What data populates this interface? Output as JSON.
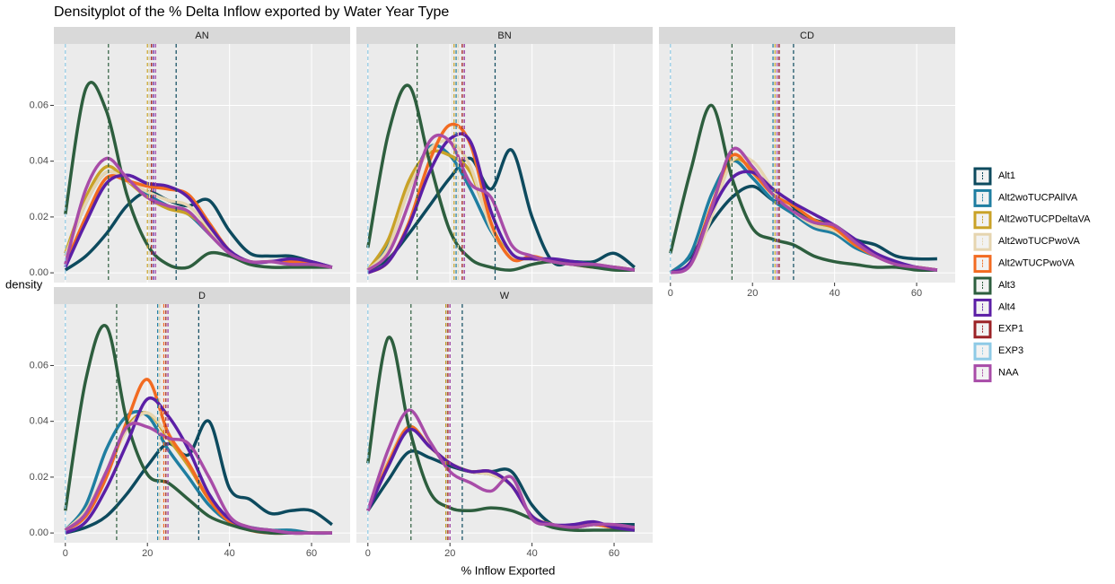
{
  "chart_data": {
    "type": "line",
    "title": "Densityplot of the % Delta Inflow exported by Water Year Type",
    "x_label": "% Inflow Exported",
    "y_label": "density",
    "x": [
      0,
      5,
      10,
      15,
      20,
      25,
      30,
      35,
      40,
      45,
      50,
      55,
      60,
      65
    ],
    "xlim": [
      -2.8,
      69.4
    ],
    "xticks": [
      0,
      20,
      40,
      60
    ],
    "ylim": [
      -0.0035,
      0.082
    ],
    "yticks": [
      {
        "value": 0,
        "label": "0.00"
      },
      0.02,
      0.04,
      0.06
    ],
    "grid": true,
    "legend": "right",
    "series": [
      {
        "name": "Alt1",
        "color": "#0d4a5e"
      },
      {
        "name": "Alt2woTUCPAllVA",
        "color": "#1f7ea1"
      },
      {
        "name": "Alt2woTUCPDeltaVA",
        "color": "#c9a227"
      },
      {
        "name": "Alt2woTUCPwoVA",
        "color": "#e6d5b0"
      },
      {
        "name": "Alt2wTUCPwoVA",
        "color": "#f26b21"
      },
      {
        "name": "Alt3",
        "color": "#2d5e3e"
      },
      {
        "name": "Alt4",
        "color": "#5b1fa6"
      },
      {
        "name": "EXP1",
        "color": "#9b2226"
      },
      {
        "name": "EXP3",
        "color": "#8ecae6"
      },
      {
        "name": "NAA",
        "color": "#a84ca8"
      }
    ],
    "facets": [
      {
        "title": "AN",
        "densities": [
          [
            0.001,
            0.006,
            0.014,
            0.024,
            0.029,
            0.026,
            0.024,
            0.026,
            0.015,
            0.007,
            0.006,
            0.006,
            0.004,
            0.002
          ],
          [
            0.006,
            0.025,
            0.036,
            0.033,
            0.028,
            0.024,
            0.021,
            0.014,
            0.007,
            0.004,
            0.004,
            0.004,
            0.003,
            0.002
          ],
          [
            0.007,
            0.027,
            0.038,
            0.033,
            0.027,
            0.023,
            0.021,
            0.015,
            0.007,
            0.004,
            0.004,
            0.004,
            0.003,
            0.002
          ],
          [
            0.006,
            0.025,
            0.036,
            0.033,
            0.029,
            0.026,
            0.024,
            0.016,
            0.007,
            0.004,
            0.004,
            0.004,
            0.003,
            0.002
          ],
          [
            0.003,
            0.02,
            0.034,
            0.033,
            0.031,
            0.03,
            0.028,
            0.018,
            0.008,
            0.004,
            0.004,
            0.004,
            0.003,
            0.002
          ],
          [
            0.021,
            0.066,
            0.058,
            0.028,
            0.01,
            0.003,
            0.002,
            0.007,
            0.006,
            0.003,
            0.002,
            0.002,
            0.002,
            0.002
          ],
          [
            0.002,
            0.018,
            0.032,
            0.035,
            0.032,
            0.031,
            0.027,
            0.017,
            0.008,
            0.004,
            0.004,
            0.005,
            0.004,
            0.002
          ],
          null,
          null,
          [
            0.003,
            0.03,
            0.041,
            0.034,
            0.027,
            0.024,
            0.022,
            0.014,
            0.007,
            0.004,
            0.004,
            0.003,
            0.003,
            0.002
          ]
        ],
        "means": [
          27,
          20.5,
          20,
          20.5,
          21,
          10.5,
          21.5,
          21,
          0,
          22
        ]
      },
      {
        "title": "BN",
        "densities": [
          [
            0.001,
            0.005,
            0.014,
            0.024,
            0.034,
            0.041,
            0.03,
            0.044,
            0.02,
            0.004,
            0.004,
            0.004,
            0.007,
            0.002
          ],
          [
            0.001,
            0.01,
            0.03,
            0.045,
            0.042,
            0.03,
            0.015,
            0.006,
            0.005,
            0.004,
            0.004,
            0.003,
            0.002,
            0.001
          ],
          [
            0.001,
            0.012,
            0.033,
            0.043,
            0.042,
            0.036,
            0.017,
            0.006,
            0.005,
            0.004,
            0.003,
            0.003,
            0.002,
            0.001
          ],
          [
            0.001,
            0.009,
            0.03,
            0.044,
            0.047,
            0.038,
            0.016,
            0.006,
            0.005,
            0.004,
            0.003,
            0.003,
            0.002,
            0.001
          ],
          [
            0.0,
            0.004,
            0.018,
            0.04,
            0.053,
            0.046,
            0.018,
            0.005,
            0.006,
            0.004,
            0.003,
            0.002,
            0.002,
            0.001
          ],
          [
            0.009,
            0.05,
            0.067,
            0.04,
            0.015,
            0.005,
            0.002,
            0.001,
            0.003,
            0.004,
            0.003,
            0.002,
            0.001,
            0.001
          ],
          [
            0.0,
            0.004,
            0.017,
            0.036,
            0.048,
            0.047,
            0.022,
            0.007,
            0.005,
            0.005,
            0.004,
            0.003,
            0.002,
            0.001
          ],
          null,
          null,
          [
            0.001,
            0.007,
            0.025,
            0.047,
            0.047,
            0.032,
            0.027,
            0.01,
            0.006,
            0.004,
            0.003,
            0.003,
            0.002,
            0.001
          ]
        ],
        "means": [
          31,
          21.5,
          21,
          22,
          23,
          12,
          23.5,
          23,
          0,
          23.5
        ]
      },
      {
        "title": "CD",
        "densities": [
          [
            0.0,
            0.006,
            0.018,
            0.027,
            0.031,
            0.026,
            0.023,
            0.019,
            0.017,
            0.012,
            0.01,
            0.006,
            0.005,
            0.005
          ],
          [
            0.0,
            0.007,
            0.028,
            0.04,
            0.034,
            0.026,
            0.021,
            0.016,
            0.014,
            0.009,
            0.006,
            0.003,
            0.002,
            0.001
          ],
          [
            0.0,
            0.004,
            0.022,
            0.04,
            0.037,
            0.028,
            0.022,
            0.018,
            0.016,
            0.01,
            0.006,
            0.003,
            0.002,
            0.001
          ],
          [
            0.0,
            0.003,
            0.02,
            0.04,
            0.04,
            0.03,
            0.022,
            0.017,
            0.015,
            0.01,
            0.006,
            0.003,
            0.002,
            0.001
          ],
          [
            0.0,
            0.004,
            0.024,
            0.042,
            0.036,
            0.028,
            0.024,
            0.019,
            0.016,
            0.01,
            0.006,
            0.003,
            0.002,
            0.001
          ],
          [
            0.007,
            0.037,
            0.06,
            0.034,
            0.016,
            0.012,
            0.01,
            0.006,
            0.004,
            0.003,
            0.002,
            0.002,
            0.001,
            0.001
          ],
          [
            0.0,
            0.004,
            0.022,
            0.034,
            0.036,
            0.03,
            0.025,
            0.021,
            0.017,
            0.012,
            0.007,
            0.004,
            0.002,
            0.001
          ],
          null,
          null,
          [
            0.0,
            0.003,
            0.023,
            0.044,
            0.038,
            0.028,
            0.022,
            0.018,
            0.017,
            0.011,
            0.006,
            0.003,
            0.002,
            0.001
          ]
        ],
        "means": [
          30,
          25,
          25.5,
          26,
          26.5,
          15,
          26.5,
          26.5,
          0,
          26
        ]
      },
      {
        "title": "D",
        "densities": [
          [
            0.0,
            0.002,
            0.006,
            0.014,
            0.024,
            0.032,
            0.028,
            0.04,
            0.016,
            0.012,
            0.007,
            0.008,
            0.008,
            0.003
          ],
          [
            0.001,
            0.01,
            0.03,
            0.042,
            0.042,
            0.03,
            0.02,
            0.01,
            0.004,
            0.002,
            0.001,
            0.001,
            0.0,
            0.0
          ],
          [
            0.001,
            0.008,
            0.022,
            0.038,
            0.043,
            0.034,
            0.024,
            0.012,
            0.005,
            0.002,
            0.001,
            0.0,
            0.0,
            0.0
          ],
          [
            0.001,
            0.008,
            0.022,
            0.037,
            0.043,
            0.035,
            0.025,
            0.013,
            0.005,
            0.002,
            0.001,
            0.0,
            0.0,
            0.0
          ],
          [
            0.001,
            0.006,
            0.02,
            0.04,
            0.055,
            0.036,
            0.025,
            0.012,
            0.004,
            0.001,
            0.0,
            0.0,
            0.0,
            0.0
          ],
          [
            0.008,
            0.055,
            0.074,
            0.04,
            0.021,
            0.018,
            0.012,
            0.006,
            0.003,
            0.001,
            0.0,
            0.0,
            0.0,
            0.0
          ],
          [
            0.0,
            0.004,
            0.016,
            0.032,
            0.048,
            0.042,
            0.03,
            0.014,
            0.005,
            0.002,
            0.001,
            0.0,
            0.0,
            0.0
          ],
          null,
          null,
          [
            0.001,
            0.007,
            0.022,
            0.038,
            0.038,
            0.034,
            0.032,
            0.02,
            0.006,
            0.002,
            0.001,
            0.0,
            0.0,
            0.0
          ]
        ],
        "means": [
          32.5,
          22.5,
          23,
          23,
          24,
          12.5,
          25,
          24.5,
          0,
          25
        ]
      },
      {
        "title": "W",
        "densities": [
          [
            0.008,
            0.019,
            0.029,
            0.027,
            0.024,
            0.022,
            0.022,
            0.022,
            0.01,
            0.003,
            0.002,
            0.003,
            0.003,
            0.003
          ],
          [
            0.008,
            0.025,
            0.038,
            0.031,
            0.025,
            0.022,
            0.021,
            0.017,
            0.006,
            0.003,
            0.002,
            0.003,
            0.002,
            0.002
          ],
          [
            0.008,
            0.026,
            0.038,
            0.031,
            0.025,
            0.022,
            0.021,
            0.017,
            0.006,
            0.003,
            0.002,
            0.003,
            0.002,
            0.002
          ],
          [
            0.008,
            0.026,
            0.038,
            0.031,
            0.025,
            0.022,
            0.021,
            0.017,
            0.006,
            0.003,
            0.002,
            0.003,
            0.002,
            0.002
          ],
          [
            0.008,
            0.025,
            0.038,
            0.031,
            0.025,
            0.022,
            0.022,
            0.017,
            0.006,
            0.003,
            0.002,
            0.003,
            0.002,
            0.002
          ],
          [
            0.025,
            0.07,
            0.038,
            0.015,
            0.009,
            0.008,
            0.009,
            0.008,
            0.005,
            0.002,
            0.001,
            0.001,
            0.001,
            0.001
          ],
          [
            0.008,
            0.024,
            0.037,
            0.031,
            0.025,
            0.022,
            0.022,
            0.017,
            0.006,
            0.003,
            0.003,
            0.004,
            0.002,
            0.001
          ],
          null,
          null,
          [
            0.008,
            0.03,
            0.044,
            0.033,
            0.022,
            0.018,
            0.015,
            0.02,
            0.005,
            0.003,
            0.002,
            0.003,
            0.003,
            0.002
          ]
        ],
        "means": [
          23,
          19,
          19,
          19.5,
          19.5,
          10.5,
          20,
          19.5,
          0,
          20
        ]
      }
    ]
  }
}
